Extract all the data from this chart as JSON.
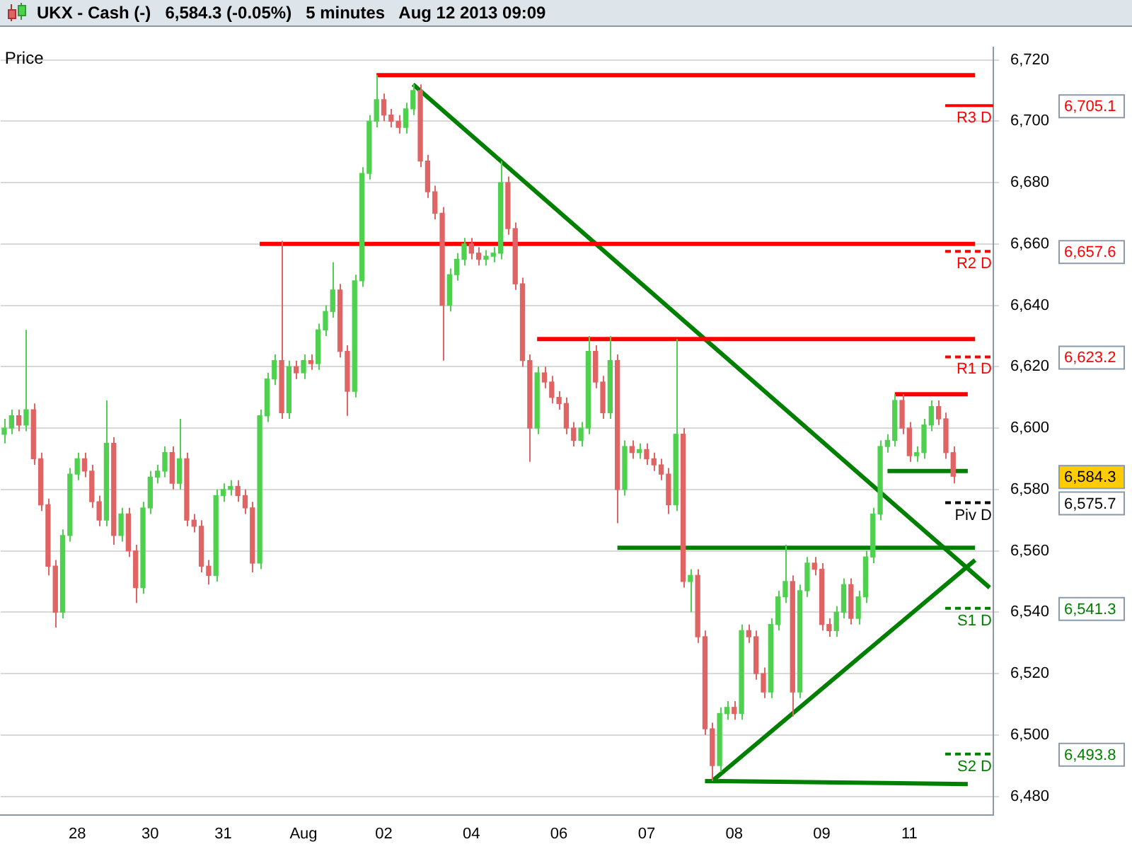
{
  "chart_data": {
    "type": "candlestick",
    "title": "UKX - Cash (-)",
    "subtitle": "6,584.3 (-0.05%)   5 minutes   Aug 12 2013 09:09",
    "ylabel": "Price",
    "categories": [
      null,
      null,
      null,
      null,
      null,
      null,
      null,
      null,
      null,
      null,
      "28",
      null,
      null,
      null,
      null,
      null,
      null,
      null,
      null,
      null,
      "30",
      null,
      null,
      null,
      null,
      null,
      null,
      null,
      null,
      null,
      "31",
      null,
      null,
      null,
      null,
      null,
      null,
      null,
      null,
      null,
      null,
      "Aug",
      null,
      null,
      null,
      null,
      null,
      null,
      null,
      null,
      null,
      null,
      "02",
      null,
      null,
      null,
      null,
      null,
      null,
      null,
      null,
      null,
      null,
      null,
      "04",
      null,
      null,
      null,
      null,
      null,
      null,
      null,
      null,
      null,
      null,
      null,
      "06",
      null,
      null,
      null,
      null,
      null,
      null,
      null,
      null,
      null,
      null,
      null,
      "07",
      null,
      null,
      null,
      null,
      null,
      null,
      null,
      null,
      null,
      null,
      null,
      "08",
      null,
      null,
      null,
      null,
      null,
      null,
      null,
      null,
      null,
      null,
      null,
      "09",
      null,
      null,
      null,
      null,
      null,
      null,
      null,
      null,
      null,
      null,
      null,
      "11",
      null,
      null,
      null,
      null,
      null,
      null,
      null,
      null,
      null,
      null,
      null
    ],
    "ohlc": [
      [
        6598,
        6603,
        6595,
        6600
      ],
      [
        6600,
        6606,
        6598,
        6604
      ],
      [
        6604,
        6606,
        6599,
        6601
      ],
      [
        6601,
        6632,
        6599,
        6606
      ],
      [
        6606,
        6608,
        6588,
        6590
      ],
      [
        6590,
        6592,
        6573,
        6575
      ],
      [
        6575,
        6577,
        6552,
        6555
      ],
      [
        6555,
        6557,
        6535,
        6540
      ],
      [
        6540,
        6567,
        6538,
        6565
      ],
      [
        6565,
        6587,
        6563,
        6585
      ],
      [
        6585,
        6592,
        6583,
        6590
      ],
      [
        6590,
        6592,
        6584,
        6586
      ],
      [
        6586,
        6588,
        6574,
        6576
      ],
      [
        6576,
        6578,
        6568,
        6570
      ],
      [
        6570,
        6609,
        6568,
        6595
      ],
      [
        6595,
        6597,
        6562,
        6565
      ],
      [
        6565,
        6574,
        6563,
        6572
      ],
      [
        6572,
        6574,
        6558,
        6560
      ],
      [
        6560,
        6562,
        6543,
        6548
      ],
      [
        6548,
        6576,
        6546,
        6574
      ],
      [
        6574,
        6586,
        6572,
        6584
      ],
      [
        6584,
        6588,
        6582,
        6586
      ],
      [
        6586,
        6594,
        6584,
        6592
      ],
      [
        6592,
        6594,
        6580,
        6582
      ],
      [
        6582,
        6603,
        6580,
        6590
      ],
      [
        6590,
        6592,
        6568,
        6570
      ],
      [
        6570,
        6572,
        6566,
        6568
      ],
      [
        6568,
        6570,
        6553,
        6555
      ],
      [
        6555,
        6557,
        6549,
        6552
      ],
      [
        6552,
        6580,
        6550,
        6578
      ],
      [
        6578,
        6582,
        6576,
        6580
      ],
      [
        6580,
        6583,
        6578,
        6581
      ],
      [
        6581,
        6583,
        6576,
        6578
      ],
      [
        6578,
        6580,
        6572,
        6574
      ],
      [
        6574,
        6576,
        6553,
        6556
      ],
      [
        6556,
        6606,
        6554,
        6604
      ],
      [
        6604,
        6618,
        6602,
        6616
      ],
      [
        6616,
        6624,
        6614,
        6622
      ],
      [
        6622,
        6661,
        6603,
        6605
      ],
      [
        6605,
        6622,
        6603,
        6620
      ],
      [
        6620,
        6622,
        6616,
        6618
      ],
      [
        6618,
        6624,
        6616,
        6622
      ],
      [
        6622,
        6624,
        6619,
        6621
      ],
      [
        6621,
        6634,
        6619,
        6632
      ],
      [
        6632,
        6640,
        6630,
        6638
      ],
      [
        6638,
        6654,
        6636,
        6645
      ],
      [
        6645,
        6647,
        6623,
        6625
      ],
      [
        6625,
        6627,
        6604,
        6612
      ],
      [
        6612,
        6650,
        6610,
        6648
      ],
      [
        6648,
        6685,
        6646,
        6683
      ],
      [
        6683,
        6702,
        6681,
        6700
      ],
      [
        6700,
        6715,
        6698,
        6707
      ],
      [
        6707,
        6709,
        6700,
        6702
      ],
      [
        6702,
        6704,
        6698,
        6700
      ],
      [
        6700,
        6702,
        6696,
        6698
      ],
      [
        6698,
        6706,
        6696,
        6704
      ],
      [
        6704,
        6712,
        6702,
        6710
      ],
      [
        6710,
        6712,
        6685,
        6687
      ],
      [
        6687,
        6689,
        6675,
        6677
      ],
      [
        6677,
        6679,
        6668,
        6670
      ],
      [
        6670,
        6672,
        6622,
        6640
      ],
      [
        6640,
        6652,
        6638,
        6650
      ],
      [
        6650,
        6657,
        6648,
        6655
      ],
      [
        6655,
        6662,
        6653,
        6660
      ],
      [
        6660,
        6662,
        6655,
        6657
      ],
      [
        6657,
        6659,
        6653,
        6655
      ],
      [
        6655,
        6658,
        6653,
        6656
      ],
      [
        6656,
        6659,
        6654,
        6657
      ],
      [
        6657,
        6687,
        6655,
        6680
      ],
      [
        6680,
        6682,
        6663,
        6665
      ],
      [
        6665,
        6667,
        6645,
        6647
      ],
      [
        6647,
        6649,
        6620,
        6622
      ],
      [
        6622,
        6624,
        6589,
        6600
      ],
      [
        6600,
        6620,
        6598,
        6618
      ],
      [
        6618,
        6620,
        6613,
        6615
      ],
      [
        6615,
        6617,
        6608,
        6610
      ],
      [
        6610,
        6612,
        6606,
        6608
      ],
      [
        6608,
        6610,
        6598,
        6600
      ],
      [
        6600,
        6602,
        6594,
        6596
      ],
      [
        6596,
        6602,
        6594,
        6600
      ],
      [
        6600,
        6630,
        6598,
        6625
      ],
      [
        6625,
        6627,
        6613,
        6615
      ],
      [
        6615,
        6617,
        6603,
        6605
      ],
      [
        6605,
        6630,
        6603,
        6622
      ],
      [
        6622,
        6624,
        6569,
        6580
      ],
      [
        6580,
        6596,
        6578,
        6594
      ],
      [
        6594,
        6596,
        6590,
        6592
      ],
      [
        6592,
        6595,
        6590,
        6593
      ],
      [
        6593,
        6595,
        6588,
        6590
      ],
      [
        6590,
        6592,
        6586,
        6588
      ],
      [
        6588,
        6590,
        6583,
        6585
      ],
      [
        6585,
        6587,
        6572,
        6575
      ],
      [
        6575,
        6629,
        6573,
        6598
      ],
      [
        6598,
        6600,
        6548,
        6550
      ],
      [
        6550,
        6554,
        6540,
        6552
      ],
      [
        6552,
        6554,
        6530,
        6532
      ],
      [
        6532,
        6534,
        6500,
        6502
      ],
      [
        6502,
        6504,
        6485,
        6490
      ],
      [
        6490,
        6509,
        6488,
        6507
      ],
      [
        6507,
        6511,
        6505,
        6509
      ],
      [
        6509,
        6511,
        6505,
        6507
      ],
      [
        6507,
        6536,
        6505,
        6534
      ],
      [
        6534,
        6536,
        6530,
        6532
      ],
      [
        6532,
        6534,
        6518,
        6520
      ],
      [
        6520,
        6522,
        6512,
        6514
      ],
      [
        6514,
        6538,
        6512,
        6536
      ],
      [
        6536,
        6547,
        6534,
        6545
      ],
      [
        6545,
        6562,
        6543,
        6550
      ],
      [
        6550,
        6552,
        6506,
        6514
      ],
      [
        6514,
        6549,
        6512,
        6547
      ],
      [
        6547,
        6558,
        6545,
        6556
      ],
      [
        6556,
        6558,
        6552,
        6554
      ],
      [
        6554,
        6556,
        6534,
        6536
      ],
      [
        6536,
        6538,
        6532,
        6534
      ],
      [
        6534,
        6542,
        6532,
        6540
      ],
      [
        6540,
        6551,
        6538,
        6549
      ],
      [
        6549,
        6551,
        6536,
        6538
      ],
      [
        6538,
        6547,
        6536,
        6545
      ],
      [
        6545,
        6560,
        6543,
        6558
      ],
      [
        6558,
        6574,
        6556,
        6572
      ],
      [
        6572,
        6596,
        6570,
        6594
      ],
      [
        6594,
        6598,
        6592,
        6596
      ],
      [
        6596,
        6611,
        6594,
        6609
      ],
      [
        6609,
        6611,
        6598,
        6600
      ],
      [
        6600,
        6602,
        6589,
        6591
      ],
      [
        6591,
        6594,
        6589,
        6592
      ],
      [
        6592,
        6603,
        6590,
        6601
      ],
      [
        6601,
        6609,
        6599,
        6607
      ],
      [
        6607,
        6609,
        6601,
        6603
      ],
      [
        6603,
        6605,
        6590,
        6592
      ],
      [
        6592,
        6594,
        6582,
        6584.3
      ],
      null,
      null,
      null,
      null,
      null
    ],
    "series": [
      {
        "type": "line",
        "color": "#ff0000",
        "values": [
          null,
          null,
          null,
          null,
          null,
          null,
          null,
          null,
          null,
          null,
          null,
          null,
          null,
          null,
          null,
          null,
          null,
          null,
          null,
          null,
          null,
          null,
          null,
          null,
          null,
          null,
          null,
          null,
          null,
          null,
          null,
          null,
          null,
          null,
          null,
          null,
          null,
          null,
          null,
          null,
          null,
          null,
          null,
          null,
          null,
          null,
          null,
          null,
          null,
          null,
          null,
          6715,
          null,
          null,
          null,
          null,
          null,
          null,
          null,
          null,
          null,
          null,
          null,
          null,
          null,
          null,
          null,
          null,
          null,
          null,
          null,
          null,
          null,
          null,
          null,
          null,
          null,
          null,
          null,
          null,
          null,
          null,
          null,
          null,
          null,
          null,
          null,
          null,
          null,
          null,
          null,
          null,
          null,
          null,
          null,
          null,
          null,
          null,
          null,
          null,
          null,
          null,
          null,
          null,
          null,
          null,
          null,
          null,
          null,
          null,
          null,
          null,
          null,
          null,
          null,
          null,
          null,
          null,
          null,
          null,
          null,
          null,
          null,
          null,
          null,
          null,
          null,
          null,
          null,
          null,
          null,
          null,
          null,
          6715,
          null,
          null
        ]
      },
      {
        "type": "line",
        "color": "#ff0000",
        "values": [
          null,
          null,
          null,
          null,
          null,
          null,
          null,
          null,
          null,
          null,
          null,
          null,
          null,
          null,
          null,
          null,
          null,
          null,
          null,
          null,
          null,
          null,
          null,
          null,
          null,
          null,
          null,
          null,
          null,
          null,
          null,
          null,
          null,
          null,
          null,
          6660,
          null,
          null,
          null,
          null,
          null,
          null,
          null,
          null,
          null,
          null,
          null,
          null,
          null,
          null,
          null,
          null,
          null,
          null,
          null,
          null,
          null,
          null,
          null,
          null,
          null,
          null,
          null,
          null,
          null,
          null,
          null,
          null,
          null,
          null,
          null,
          null,
          null,
          null,
          null,
          null,
          null,
          null,
          null,
          null,
          null,
          null,
          null,
          null,
          null,
          null,
          null,
          null,
          null,
          null,
          null,
          null,
          null,
          null,
          null,
          null,
          null,
          null,
          null,
          null,
          null,
          null,
          null,
          null,
          null,
          null,
          null,
          null,
          null,
          null,
          null,
          null,
          null,
          null,
          null,
          null,
          null,
          null,
          null,
          null,
          null,
          null,
          null,
          null,
          null,
          null,
          null,
          null,
          null,
          null,
          null,
          null,
          null,
          6660,
          null,
          null
        ]
      },
      {
        "type": "line",
        "color": "#ff0000",
        "values": [
          null,
          null,
          null,
          null,
          null,
          null,
          null,
          null,
          null,
          null,
          null,
          null,
          null,
          null,
          null,
          null,
          null,
          null,
          null,
          null,
          null,
          null,
          null,
          null,
          null,
          null,
          null,
          null,
          null,
          null,
          null,
          null,
          null,
          null,
          null,
          null,
          null,
          null,
          null,
          null,
          null,
          null,
          null,
          null,
          null,
          null,
          null,
          null,
          null,
          null,
          null,
          null,
          null,
          null,
          null,
          null,
          null,
          null,
          null,
          null,
          null,
          null,
          null,
          null,
          null,
          null,
          null,
          null,
          null,
          null,
          null,
          null,
          null,
          6629,
          null,
          null,
          null,
          null,
          null,
          null,
          null,
          null,
          null,
          null,
          null,
          null,
          null,
          null,
          null,
          null,
          null,
          null,
          null,
          null,
          null,
          null,
          null,
          null,
          null,
          null,
          null,
          null,
          null,
          null,
          null,
          null,
          null,
          null,
          null,
          null,
          null,
          null,
          null,
          null,
          null,
          null,
          null,
          null,
          null,
          null,
          null,
          null,
          null,
          null,
          null,
          null,
          null,
          null,
          null,
          null,
          null,
          null,
          null,
          6629,
          null,
          null
        ]
      },
      {
        "type": "line",
        "color": "#ff0000",
        "values": [
          null,
          null,
          null,
          null,
          null,
          null,
          null,
          null,
          null,
          null,
          null,
          null,
          null,
          null,
          null,
          null,
          null,
          null,
          null,
          null,
          null,
          null,
          null,
          null,
          null,
          null,
          null,
          null,
          null,
          null,
          null,
          null,
          null,
          null,
          null,
          null,
          null,
          null,
          null,
          null,
          null,
          null,
          null,
          null,
          null,
          null,
          null,
          null,
          null,
          null,
          null,
          null,
          null,
          null,
          null,
          null,
          null,
          null,
          null,
          null,
          null,
          null,
          null,
          null,
          null,
          null,
          null,
          null,
          null,
          null,
          null,
          null,
          null,
          null,
          null,
          null,
          null,
          null,
          null,
          null,
          null,
          null,
          null,
          null,
          null,
          null,
          null,
          null,
          null,
          null,
          null,
          null,
          null,
          null,
          null,
          null,
          null,
          null,
          null,
          null,
          null,
          null,
          null,
          null,
          null,
          null,
          null,
          null,
          null,
          null,
          null,
          null,
          null,
          null,
          null,
          null,
          null,
          null,
          null,
          null,
          null,
          null,
          6611,
          null,
          null,
          null,
          null,
          null,
          null,
          null,
          null,
          null,
          6611,
          null,
          null,
          null
        ]
      },
      {
        "type": "line",
        "color": "#008000",
        "values": [
          null,
          null,
          null,
          null,
          null,
          null,
          null,
          null,
          null,
          null,
          null,
          null,
          null,
          null,
          null,
          null,
          null,
          null,
          null,
          null,
          null,
          null,
          null,
          null,
          null,
          null,
          null,
          null,
          null,
          null,
          null,
          null,
          null,
          null,
          null,
          null,
          null,
          null,
          null,
          null,
          null,
          null,
          null,
          null,
          null,
          null,
          null,
          null,
          null,
          null,
          null,
          null,
          null,
          null,
          null,
          null,
          6712,
          null,
          null,
          null,
          null,
          null,
          null,
          null,
          null,
          null,
          null,
          null,
          null,
          null,
          null,
          null,
          null,
          null,
          null,
          null,
          null,
          null,
          null,
          null,
          null,
          null,
          null,
          null,
          null,
          null,
          null,
          null,
          null,
          null,
          null,
          null,
          null,
          null,
          null,
          null,
          null,
          null,
          null,
          null,
          null,
          null,
          null,
          null,
          null,
          null,
          null,
          null,
          null,
          null,
          null,
          null,
          null,
          null,
          null,
          null,
          null,
          null,
          null,
          null,
          null,
          null,
          null,
          null,
          null,
          null,
          null,
          null,
          null,
          null,
          null,
          null,
          null,
          null,
          null,
          6548
        ]
      },
      {
        "type": "line",
        "color": "#008000",
        "values": [
          null,
          null,
          null,
          null,
          null,
          null,
          null,
          null,
          null,
          null,
          null,
          null,
          null,
          null,
          null,
          null,
          null,
          null,
          null,
          null,
          null,
          null,
          null,
          null,
          null,
          null,
          null,
          null,
          null,
          null,
          null,
          null,
          null,
          null,
          null,
          null,
          null,
          null,
          null,
          null,
          null,
          null,
          null,
          null,
          null,
          null,
          null,
          null,
          null,
          null,
          null,
          null,
          null,
          null,
          null,
          null,
          null,
          null,
          null,
          null,
          null,
          null,
          null,
          null,
          null,
          null,
          null,
          null,
          null,
          null,
          null,
          null,
          null,
          null,
          null,
          null,
          null,
          null,
          null,
          null,
          null,
          null,
          null,
          null,
          6561,
          null,
          null,
          null,
          null,
          null,
          null,
          null,
          null,
          null,
          null,
          null,
          null,
          null,
          null,
          null,
          null,
          null,
          null,
          null,
          null,
          null,
          null,
          null,
          null,
          null,
          null,
          null,
          null,
          null,
          null,
          null,
          null,
          null,
          null,
          null,
          null,
          null,
          null,
          null,
          null,
          null,
          null,
          null,
          null,
          null,
          null,
          null,
          null,
          6561,
          null,
          null
        ]
      },
      {
        "type": "line",
        "color": "#008000",
        "values": [
          null,
          null,
          null,
          null,
          null,
          null,
          null,
          null,
          null,
          null,
          null,
          null,
          null,
          null,
          null,
          null,
          null,
          null,
          null,
          null,
          null,
          null,
          null,
          null,
          null,
          null,
          null,
          null,
          null,
          null,
          null,
          null,
          null,
          null,
          null,
          null,
          null,
          null,
          null,
          null,
          null,
          null,
          null,
          null,
          null,
          null,
          null,
          null,
          null,
          null,
          null,
          null,
          null,
          null,
          null,
          null,
          null,
          null,
          null,
          null,
          null,
          null,
          null,
          null,
          null,
          null,
          null,
          null,
          null,
          null,
          null,
          null,
          null,
          null,
          null,
          null,
          null,
          null,
          null,
          null,
          null,
          null,
          null,
          null,
          null,
          null,
          null,
          null,
          null,
          null,
          null,
          null,
          null,
          null,
          null,
          null,
          null,
          6485,
          null,
          null,
          null,
          null,
          null,
          null,
          null,
          null,
          null,
          null,
          null,
          null,
          null,
          null,
          null,
          null,
          null,
          null,
          null,
          null,
          null,
          null,
          null,
          null,
          null,
          null,
          null,
          null,
          null,
          null,
          null,
          null,
          null,
          null,
          null,
          6557,
          null,
          null
        ]
      },
      {
        "type": "line",
        "color": "#008000",
        "values": [
          null,
          null,
          null,
          null,
          null,
          null,
          null,
          null,
          null,
          null,
          null,
          null,
          null,
          null,
          null,
          null,
          null,
          null,
          null,
          null,
          null,
          null,
          null,
          null,
          null,
          null,
          null,
          null,
          null,
          null,
          null,
          null,
          null,
          null,
          null,
          null,
          null,
          null,
          null,
          null,
          null,
          null,
          null,
          null,
          null,
          null,
          null,
          null,
          null,
          null,
          null,
          null,
          null,
          null,
          null,
          null,
          null,
          null,
          null,
          null,
          null,
          null,
          null,
          null,
          null,
          null,
          null,
          null,
          null,
          null,
          null,
          null,
          null,
          null,
          null,
          null,
          null,
          null,
          null,
          null,
          null,
          null,
          null,
          null,
          null,
          null,
          null,
          null,
          null,
          null,
          null,
          null,
          null,
          null,
          null,
          null,
          6485,
          null,
          null,
          null,
          null,
          null,
          null,
          null,
          null,
          null,
          null,
          null,
          null,
          null,
          null,
          null,
          null,
          null,
          null,
          null,
          null,
          null,
          null,
          null,
          null,
          null,
          null,
          null,
          null,
          null,
          null,
          null,
          null,
          null,
          null,
          null,
          6484,
          null,
          null,
          null
        ]
      },
      {
        "type": "line",
        "color": "#008000",
        "values": [
          null,
          null,
          null,
          null,
          null,
          null,
          null,
          null,
          null,
          null,
          null,
          null,
          null,
          null,
          null,
          null,
          null,
          null,
          null,
          null,
          null,
          null,
          null,
          null,
          null,
          null,
          null,
          null,
          null,
          null,
          null,
          null,
          null,
          null,
          null,
          null,
          null,
          null,
          null,
          null,
          null,
          null,
          null,
          null,
          null,
          null,
          null,
          null,
          null,
          null,
          null,
          null,
          null,
          null,
          null,
          null,
          null,
          null,
          null,
          null,
          null,
          null,
          null,
          null,
          null,
          null,
          null,
          null,
          null,
          null,
          null,
          null,
          null,
          null,
          null,
          null,
          null,
          null,
          null,
          null,
          null,
          null,
          null,
          null,
          null,
          null,
          null,
          null,
          null,
          null,
          null,
          null,
          null,
          null,
          null,
          null,
          null,
          null,
          null,
          null,
          null,
          null,
          null,
          null,
          null,
          null,
          null,
          null,
          null,
          null,
          null,
          null,
          null,
          null,
          null,
          null,
          null,
          null,
          null,
          null,
          null,
          6586,
          null,
          null,
          null,
          null,
          null,
          null,
          null,
          null,
          null,
          null,
          6586,
          null,
          null,
          null
        ]
      }
    ],
    "ref_lines": [
      {
        "axis": "y",
        "value": 6705.1,
        "label": "R3 D",
        "color": "#ff0000",
        "line_style": "solid"
      },
      {
        "axis": "y",
        "value": 6657.6,
        "label": "R2 D",
        "color": "#ff0000",
        "line_style": "dashed"
      },
      {
        "axis": "y",
        "value": 6623.2,
        "label": "R1 D",
        "color": "#ff0000",
        "line_style": "dashed"
      },
      {
        "axis": "y",
        "value": 6575.7,
        "label": "Piv D",
        "color": "#000000",
        "line_style": "dashed"
      },
      {
        "axis": "y",
        "value": 6541.3,
        "label": "S1 D",
        "color": "#008000",
        "line_style": "dashed"
      },
      {
        "axis": "y",
        "value": 6493.8,
        "label": "S2 D",
        "color": "#008000",
        "line_style": "dashed"
      }
    ],
    "annotations": [
      "6,705.1",
      "6,657.6",
      "6,623.2",
      "6,575.7",
      "6,541.3",
      "6,493.8",
      "6,584.3"
    ],
    "ylim": [
      6474,
      6724
    ],
    "yticks": [
      {
        "value": 6480,
        "label": "6,480"
      },
      {
        "value": 6500,
        "label": "6,500"
      },
      {
        "value": 6520,
        "label": "6,520"
      },
      {
        "value": 6540,
        "label": "6,540"
      },
      {
        "value": 6560,
        "label": "6,560"
      },
      {
        "value": 6580,
        "label": "6,580"
      },
      {
        "value": 6600,
        "label": "6,600"
      },
      {
        "value": 6620,
        "label": "6,620"
      },
      {
        "value": 6640,
        "label": "6,640"
      },
      {
        "value": 6660,
        "label": "6,660"
      },
      {
        "value": 6680,
        "label": "6,680"
      },
      {
        "value": 6700,
        "label": "6,700"
      },
      {
        "value": 6720,
        "label": "6,720"
      }
    ],
    "grid": "y",
    "legend": false
  }
}
